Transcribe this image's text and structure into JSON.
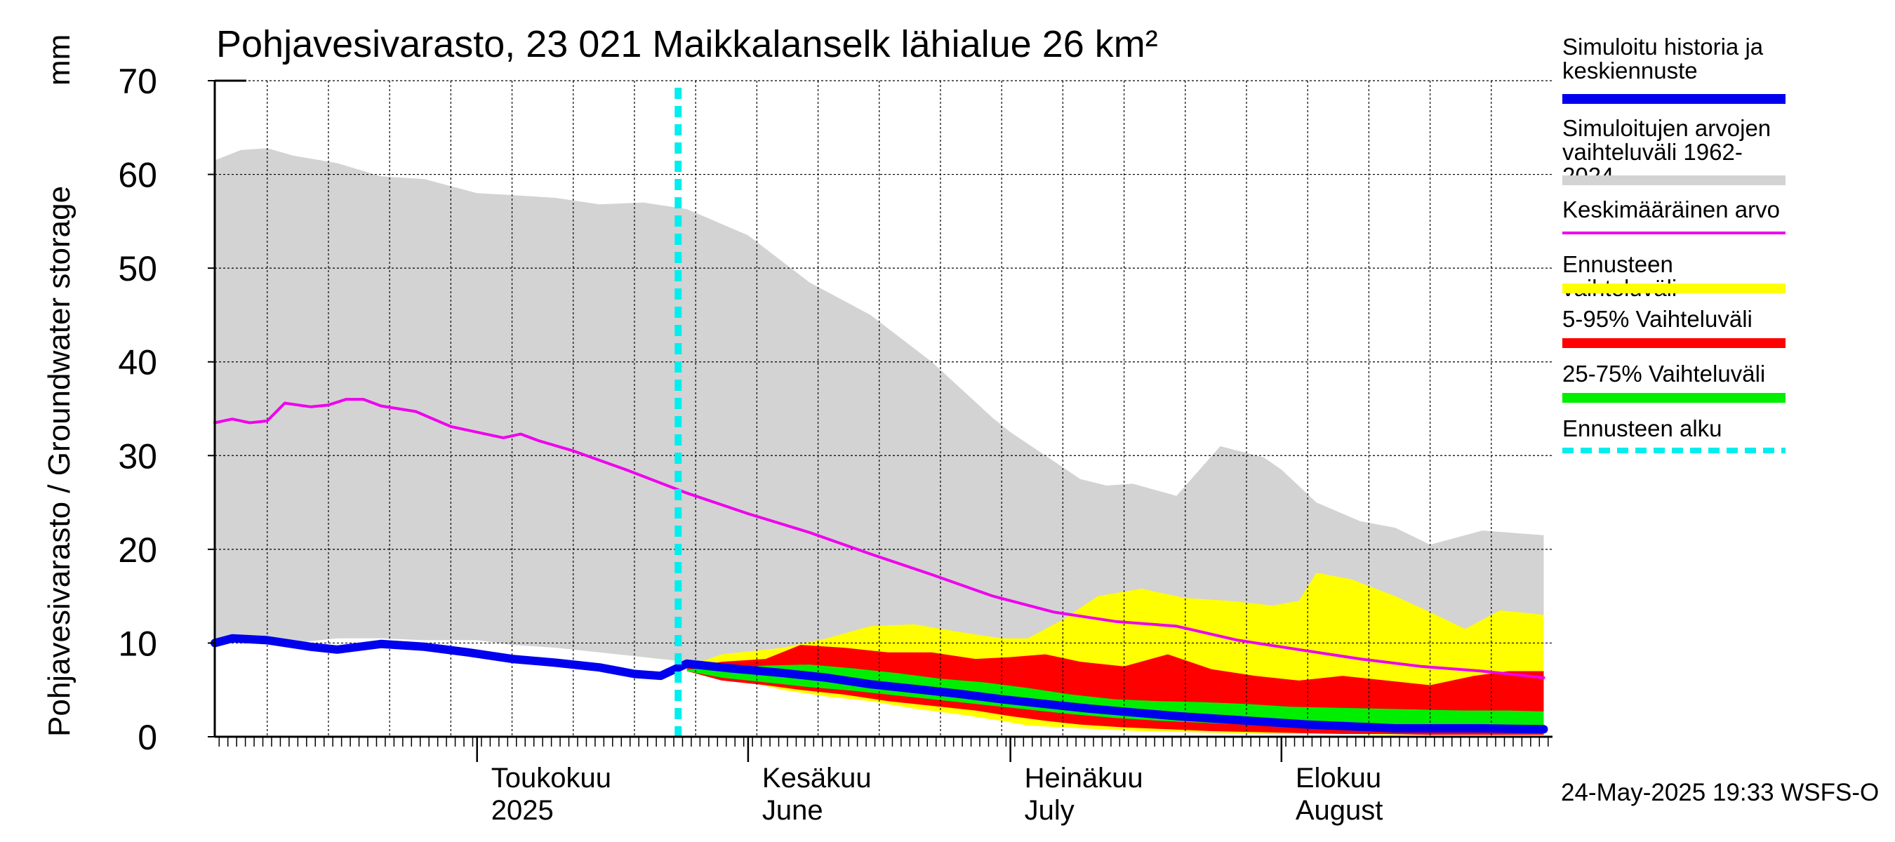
{
  "title": "Pohjavesivarasto, 23 021 Maikkalanselk lähialue 26 km²",
  "y_axis_label": "Pohjavesivarasto / Groundwater storage",
  "y_axis_unit": "mm",
  "footer": "24-May-2025 19:33 WSFS-O",
  "colors": {
    "history": "#0000ee",
    "range_hist": "#d3d3d3",
    "mean": "#ee00ee",
    "forecast_range": "#ffff00",
    "p5_95": "#ff0000",
    "p25_75": "#00ee00",
    "forecast_start": "#00eeee"
  },
  "legend": [
    {
      "label": "Simuloitu historia ja\nkeskiennuste",
      "color": "#0000ee",
      "style": "thick"
    },
    {
      "label": "Simuloitujen arvojen\nvaihteluväli 1962-2024",
      "color": "#d3d3d3",
      "style": "thick"
    },
    {
      "label": "Keskimääräinen arvo",
      "color": "#ee00ee",
      "style": "thin"
    },
    {
      "label": "Ennusteen vaihteluväli",
      "color": "#ffff00",
      "style": "thick"
    },
    {
      "label": "5-95% Vaihteluväli",
      "color": "#ff0000",
      "style": "thick"
    },
    {
      "label": "25-75% Vaihteluväli",
      "color": "#00ee00",
      "style": "thick"
    },
    {
      "label": "Ennusteen alku",
      "color": "#00eeee",
      "style": "dashed"
    }
  ],
  "chart_data": {
    "type": "area",
    "x_start": "2025-04-01",
    "x_end": "2025-08-31",
    "ylim": [
      0,
      70
    ],
    "yticks": [
      0,
      10,
      20,
      30,
      40,
      50,
      60,
      70
    ],
    "grid": true,
    "legend_position": "right",
    "forecast_start": "2025-05-24",
    "month_labels": [
      {
        "date": "2025-05-01",
        "line1": "Toukokuu",
        "line2": "2025"
      },
      {
        "date": "2025-06-01",
        "line1": "Kesäkuu",
        "line2": "June"
      },
      {
        "date": "2025-07-01",
        "line1": "Heinäkuu",
        "line2": "July"
      },
      {
        "date": "2025-08-01",
        "line1": "Elokuu",
        "line2": "August"
      }
    ],
    "series": [
      {
        "name": "Simuloitujen arvojen vaihteluväli 1962-2024",
        "kind": "band",
        "x": [
          "2025-04-01",
          "2025-04-04",
          "2025-04-07",
          "2025-04-10",
          "2025-04-15",
          "2025-04-20",
          "2025-04-25",
          "2025-05-01",
          "2025-05-05",
          "2025-05-10",
          "2025-05-15",
          "2025-05-20",
          "2025-05-25",
          "2025-06-01",
          "2025-06-08",
          "2025-06-15",
          "2025-06-22",
          "2025-06-29",
          "2025-07-01",
          "2025-07-05",
          "2025-07-09",
          "2025-07-12",
          "2025-07-15",
          "2025-07-20",
          "2025-07-25",
          "2025-07-30",
          "2025-08-01",
          "2025-08-05",
          "2025-08-10",
          "2025-08-14",
          "2025-08-18",
          "2025-08-24",
          "2025-08-31"
        ],
        "upper": [
          61.5,
          62.6,
          62.8,
          62.0,
          61.2,
          59.8,
          59.5,
          58.0,
          57.8,
          57.5,
          56.8,
          57.0,
          56.3,
          53.5,
          48.5,
          45.0,
          40.0,
          34.0,
          32.5,
          30.0,
          27.5,
          26.8,
          27.0,
          25.7,
          31.0,
          29.8,
          28.5,
          25.0,
          23.0,
          22.3,
          20.5,
          22.0,
          21.5
        ],
        "lower": [
          10.0,
          10.2,
          10.2,
          10.0,
          10.5,
          10.5,
          10.3,
          10.3,
          9.8,
          9.5,
          9.0,
          8.5,
          8.0,
          7.3,
          6.3,
          5.5,
          4.8,
          4.2,
          3.8,
          3.3,
          3.0,
          2.8,
          2.6,
          2.5,
          2.4,
          2.3,
          2.2,
          2.0,
          1.8,
          1.8,
          1.7,
          1.7,
          1.6
        ]
      },
      {
        "name": "Ennusteen vaihteluväli",
        "kind": "band",
        "x": [
          "2025-05-25",
          "2025-05-29",
          "2025-06-05",
          "2025-06-10",
          "2025-06-15",
          "2025-06-20",
          "2025-06-25",
          "2025-06-30",
          "2025-07-03",
          "2025-07-07",
          "2025-07-11",
          "2025-07-16",
          "2025-07-21",
          "2025-07-26",
          "2025-07-31",
          "2025-08-03",
          "2025-08-05",
          "2025-08-09",
          "2025-08-14",
          "2025-08-18",
          "2025-08-22",
          "2025-08-26",
          "2025-08-31"
        ],
        "upper": [
          7.5,
          8.8,
          9.5,
          10.5,
          11.8,
          12.0,
          11.2,
          10.5,
          10.5,
          12.5,
          15.0,
          15.8,
          14.8,
          14.5,
          14.0,
          14.5,
          17.5,
          16.8,
          15.0,
          13.3,
          11.5,
          13.5,
          13.0
        ],
        "lower": [
          7.0,
          6.5,
          5.0,
          4.3,
          3.8,
          3.0,
          2.4,
          1.7,
          1.2,
          1.0,
          0.8,
          0.6,
          0.5,
          0.4,
          0.3,
          0.3,
          0.3,
          0.3,
          0.2,
          0.2,
          0.2,
          0.2,
          0.2
        ]
      },
      {
        "name": "5-95% Vaihteluväli",
        "kind": "band",
        "x": [
          "2025-05-25",
          "2025-05-29",
          "2025-06-03",
          "2025-06-07",
          "2025-06-12",
          "2025-06-17",
          "2025-06-22",
          "2025-06-27",
          "2025-07-01",
          "2025-07-05",
          "2025-07-09",
          "2025-07-14",
          "2025-07-19",
          "2025-07-24",
          "2025-07-29",
          "2025-08-03",
          "2025-08-08",
          "2025-08-13",
          "2025-08-18",
          "2025-08-23",
          "2025-08-27",
          "2025-08-31"
        ],
        "upper": [
          7.3,
          8.0,
          8.3,
          9.8,
          9.5,
          9.0,
          9.0,
          8.3,
          8.5,
          8.8,
          8.0,
          7.5,
          8.8,
          7.2,
          6.5,
          6.0,
          6.5,
          6.0,
          5.5,
          6.5,
          7.0,
          7.0
        ],
        "lower": [
          7.0,
          6.0,
          5.5,
          5.0,
          4.5,
          3.8,
          3.3,
          2.8,
          2.2,
          1.7,
          1.3,
          1.0,
          0.8,
          0.6,
          0.5,
          0.4,
          0.3,
          0.3,
          0.2,
          0.2,
          0.2,
          0.2
        ]
      },
      {
        "name": "25-75% Vaihteluväli",
        "kind": "band",
        "x": [
          "2025-05-25",
          "2025-05-29",
          "2025-06-03",
          "2025-06-08",
          "2025-06-13",
          "2025-06-18",
          "2025-06-23",
          "2025-06-28",
          "2025-07-03",
          "2025-07-08",
          "2025-07-13",
          "2025-07-18",
          "2025-07-23",
          "2025-07-28",
          "2025-08-02",
          "2025-08-07",
          "2025-08-12",
          "2025-08-17",
          "2025-08-22",
          "2025-08-27",
          "2025-08-31"
        ],
        "upper": [
          7.2,
          7.3,
          7.6,
          7.7,
          7.3,
          6.8,
          6.2,
          5.8,
          5.2,
          4.5,
          4.0,
          3.8,
          3.7,
          3.5,
          3.2,
          3.1,
          3.0,
          2.9,
          2.8,
          2.8,
          2.7
        ],
        "lower": [
          7.0,
          6.3,
          5.8,
          5.3,
          4.9,
          4.4,
          3.9,
          3.4,
          2.9,
          2.4,
          2.0,
          1.7,
          1.5,
          1.3,
          1.1,
          0.9,
          0.7,
          0.6,
          0.5,
          0.5,
          0.5
        ]
      },
      {
        "name": "Simuloitu historia ja keskiennuste",
        "kind": "line",
        "x": [
          "2025-04-01",
          "2025-04-03",
          "2025-04-07",
          "2025-04-12",
          "2025-04-15",
          "2025-04-20",
          "2025-04-25",
          "2025-04-30",
          "2025-05-05",
          "2025-05-10",
          "2025-05-15",
          "2025-05-19",
          "2025-05-22",
          "2025-05-25",
          "2025-05-30",
          "2025-06-05",
          "2025-06-10",
          "2025-06-15",
          "2025-06-20",
          "2025-06-25",
          "2025-06-30",
          "2025-07-05",
          "2025-07-10",
          "2025-07-15",
          "2025-07-20",
          "2025-07-25",
          "2025-07-30",
          "2025-08-04",
          "2025-08-09",
          "2025-08-14",
          "2025-08-19",
          "2025-08-24",
          "2025-08-31"
        ],
        "values": [
          10.0,
          10.5,
          10.3,
          9.6,
          9.3,
          9.9,
          9.6,
          9.0,
          8.3,
          7.9,
          7.4,
          6.7,
          6.5,
          7.8,
          7.3,
          6.8,
          6.3,
          5.6,
          5.1,
          4.6,
          4.0,
          3.5,
          3.0,
          2.6,
          2.2,
          1.9,
          1.6,
          1.3,
          1.1,
          0.9,
          0.9,
          0.9,
          0.8
        ]
      },
      {
        "name": "Keskimääräinen arvo",
        "kind": "line",
        "x": [
          "2025-04-01",
          "2025-04-03",
          "2025-04-05",
          "2025-04-07",
          "2025-04-09",
          "2025-04-12",
          "2025-04-14",
          "2025-04-16",
          "2025-04-18",
          "2025-04-20",
          "2025-04-24",
          "2025-04-28",
          "2025-05-01",
          "2025-05-04",
          "2025-05-06",
          "2025-05-08",
          "2025-05-12",
          "2025-05-18",
          "2025-05-25",
          "2025-06-01",
          "2025-06-08",
          "2025-06-15",
          "2025-06-22",
          "2025-06-29",
          "2025-07-06",
          "2025-07-13",
          "2025-07-20",
          "2025-07-27",
          "2025-08-03",
          "2025-08-10",
          "2025-08-17",
          "2025-08-24",
          "2025-08-31"
        ],
        "values": [
          33.5,
          33.9,
          33.5,
          33.7,
          35.6,
          35.2,
          35.4,
          36.0,
          36.0,
          35.3,
          34.7,
          33.1,
          32.5,
          31.9,
          32.3,
          31.6,
          30.5,
          28.5,
          26.0,
          23.8,
          21.8,
          19.5,
          17.3,
          15.0,
          13.3,
          12.3,
          11.8,
          10.3,
          9.3,
          8.3,
          7.5,
          7.0,
          6.3
        ]
      }
    ]
  }
}
